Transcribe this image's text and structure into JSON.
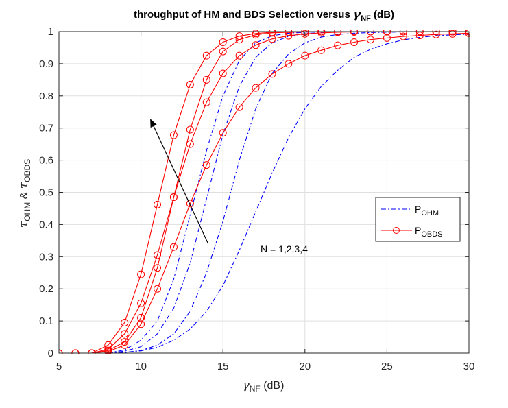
{
  "chart_data": {
    "type": "line",
    "title": {
      "main": "throughput of HM and BDS Selection versus ",
      "gamma": "γ",
      "sub": "NF",
      "suffix": " (dB)"
    },
    "xlabel": {
      "main": "γ",
      "sub": "NF",
      "suffix": " (dB)"
    },
    "ylabel": {
      "tau1": "τ",
      "sub1": "OHM",
      "amp": " & ",
      "tau2": "τ",
      "sub2": "OBDS"
    },
    "xlim": [
      5,
      30
    ],
    "ylim": [
      0,
      1
    ],
    "xticks": [
      "5",
      "10",
      "15",
      "20",
      "25",
      "30"
    ],
    "yticks": [
      "0",
      "0.1",
      "0.2",
      "0.3",
      "0.4",
      "0.5",
      "0.6",
      "0.7",
      "0.8",
      "0.9",
      "1"
    ],
    "grid": true,
    "legend": {
      "placement": "right-middle",
      "entries": [
        {
          "main": "P",
          "sub": "OHM"
        },
        {
          "main": "P",
          "sub": "OBDS"
        }
      ]
    },
    "annotation": {
      "text": "N = 1,2,3,4",
      "arrow_from": [
        14.1,
        0.34
      ],
      "arrow_to": [
        10.6,
        0.725
      ]
    },
    "colors": {
      "ohm": "#0000ff",
      "obds": "#ff0000",
      "axes": "#262626",
      "grid": "#dfdfdf"
    },
    "series": [
      {
        "group": "OHM",
        "N": 1,
        "x": [
          8,
          9,
          10,
          11,
          12,
          13,
          14,
          15,
          16,
          17,
          18,
          19,
          20,
          21,
          22,
          23,
          24,
          25,
          26,
          27,
          28,
          29,
          30
        ],
        "y": [
          0,
          0.002,
          0.007,
          0.018,
          0.04,
          0.075,
          0.13,
          0.21,
          0.32,
          0.44,
          0.56,
          0.67,
          0.76,
          0.83,
          0.88,
          0.92,
          0.945,
          0.962,
          0.974,
          0.982,
          0.987,
          0.99,
          0.992
        ]
      },
      {
        "group": "OHM",
        "N": 2,
        "x": [
          8,
          9,
          10,
          11,
          12,
          13,
          14,
          15,
          16,
          17,
          18,
          19,
          20,
          21,
          22,
          23,
          24,
          25,
          26,
          27,
          28,
          29,
          30
        ],
        "y": [
          0,
          0.002,
          0.008,
          0.025,
          0.06,
          0.13,
          0.25,
          0.41,
          0.6,
          0.76,
          0.87,
          0.93,
          0.965,
          0.983,
          0.991,
          0.995,
          0.997,
          0.998,
          0.999,
          0.999,
          1,
          1,
          1
        ]
      },
      {
        "group": "OHM",
        "N": 3,
        "x": [
          8,
          9,
          10,
          11,
          12,
          13,
          14,
          15,
          16,
          17,
          18,
          19,
          20,
          21,
          22,
          23,
          24,
          25,
          26,
          27,
          28,
          29,
          30
        ],
        "y": [
          0,
          0.006,
          0.02,
          0.06,
          0.14,
          0.28,
          0.48,
          0.68,
          0.83,
          0.92,
          0.965,
          0.985,
          0.994,
          0.997,
          0.999,
          1,
          1,
          1,
          1,
          1,
          1,
          1,
          1
        ]
      },
      {
        "group": "OHM",
        "N": 4,
        "x": [
          8,
          9,
          10,
          11,
          12,
          13,
          14,
          15,
          16,
          17,
          18,
          19,
          20,
          21,
          22,
          23,
          24,
          25,
          26,
          27,
          28,
          29,
          30
        ],
        "y": [
          0,
          0.01,
          0.04,
          0.1,
          0.23,
          0.43,
          0.63,
          0.8,
          0.91,
          0.965,
          0.987,
          0.995,
          0.998,
          1,
          1,
          1,
          1,
          1,
          1,
          1,
          1,
          1,
          1
        ]
      },
      {
        "group": "OBDS",
        "N": 1,
        "x": [
          5,
          6,
          7,
          8,
          9,
          10,
          11,
          12,
          13,
          14,
          15,
          16,
          17,
          18,
          19,
          20,
          21,
          22,
          23,
          24,
          25,
          26,
          27,
          28,
          29,
          30
        ],
        "y": [
          0,
          0,
          0,
          0.005,
          0.025,
          0.09,
          0.2,
          0.33,
          0.465,
          0.585,
          0.685,
          0.765,
          0.825,
          0.868,
          0.9,
          0.925,
          0.942,
          0.957,
          0.967,
          0.975,
          0.98,
          0.985,
          0.988,
          0.991,
          0.993,
          0.995
        ]
      },
      {
        "group": "OBDS",
        "N": 2,
        "x": [
          5,
          6,
          7,
          8,
          9,
          10,
          11,
          12,
          13,
          14,
          15,
          16,
          17,
          18,
          19,
          20,
          21,
          22,
          23,
          24,
          25,
          26,
          27,
          28,
          29,
          30
        ],
        "y": [
          0,
          0,
          0,
          0.008,
          0.035,
          0.11,
          0.265,
          0.485,
          0.65,
          0.78,
          0.87,
          0.925,
          0.958,
          0.977,
          0.987,
          0.993,
          0.996,
          0.998,
          0.999,
          1,
          1,
          1,
          1,
          1,
          1,
          1
        ]
      },
      {
        "group": "OBDS",
        "N": 3,
        "x": [
          5,
          6,
          7,
          8,
          9,
          10,
          11,
          12,
          13,
          14,
          15,
          16,
          17,
          18,
          19,
          20,
          21,
          22,
          23,
          24,
          25,
          26,
          27,
          28,
          29,
          30
        ],
        "y": [
          0,
          0,
          0,
          0.012,
          0.06,
          0.155,
          0.305,
          0.485,
          0.695,
          0.85,
          0.938,
          0.975,
          0.99,
          0.996,
          0.998,
          0.999,
          1,
          1,
          1,
          1,
          1,
          1,
          1,
          1,
          1,
          1
        ]
      },
      {
        "group": "OBDS",
        "N": 4,
        "x": [
          5,
          6,
          7,
          8,
          9,
          10,
          11,
          12,
          13,
          14,
          15,
          16,
          17,
          18,
          19,
          20,
          21,
          22,
          23,
          24,
          25,
          26,
          27,
          28,
          29,
          30
        ],
        "y": [
          0,
          0,
          0,
          0.025,
          0.095,
          0.245,
          0.462,
          0.678,
          0.835,
          0.925,
          0.967,
          0.986,
          0.994,
          0.998,
          0.999,
          1,
          1,
          1,
          1,
          1,
          1,
          1,
          1,
          1,
          1,
          1
        ]
      }
    ]
  }
}
